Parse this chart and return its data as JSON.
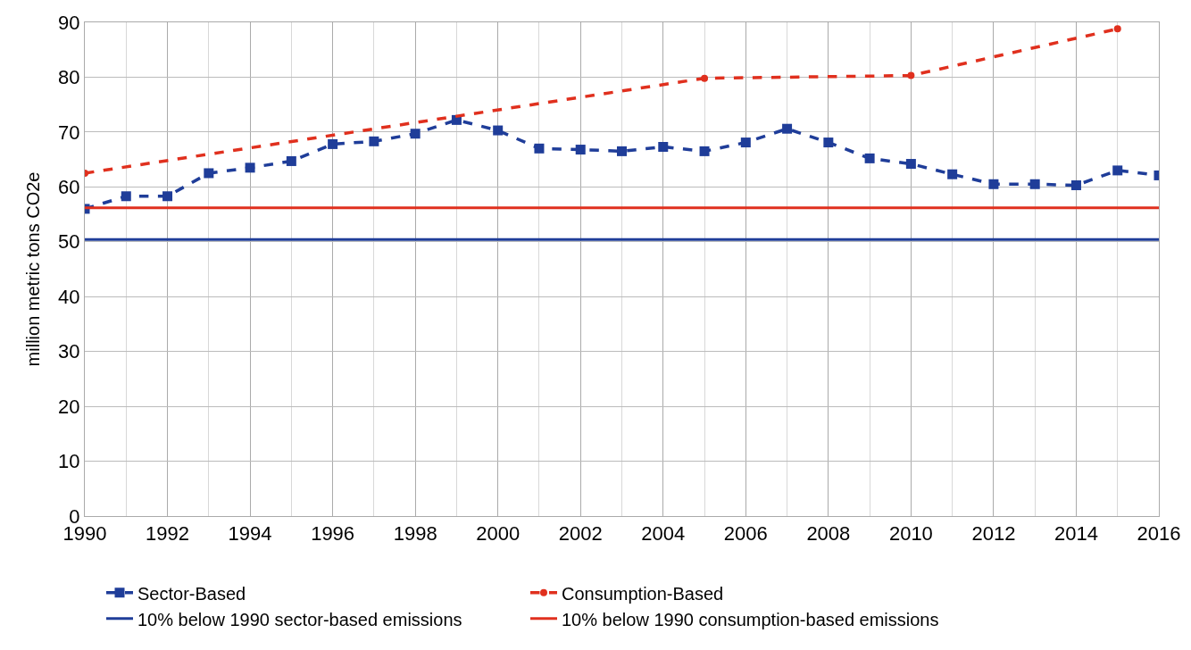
{
  "chart_data": {
    "type": "line",
    "ylabel": "million metric tons CO2e",
    "xlim": [
      1990,
      2016
    ],
    "xticks": [
      1990,
      1992,
      1994,
      1996,
      1998,
      2000,
      2002,
      2004,
      2006,
      2008,
      2010,
      2012,
      2014,
      2016
    ],
    "ylim": [
      0,
      90
    ],
    "yticks": [
      0,
      10,
      20,
      30,
      40,
      50,
      60,
      70,
      80,
      90
    ],
    "grid": true,
    "legend": "bottom",
    "line_style": "dashed",
    "series": [
      {
        "name": "Sector-Based",
        "color": "#1f3d99",
        "marker": "square",
        "x": [
          1990,
          1991,
          1992,
          1993,
          1994,
          1995,
          1996,
          1997,
          1998,
          1999,
          2000,
          2001,
          2002,
          2003,
          2004,
          2005,
          2006,
          2007,
          2008,
          2009,
          2010,
          2011,
          2012,
          2013,
          2014,
          2015,
          2016
        ],
        "values": [
          56,
          58.3,
          58.3,
          62.5,
          63.5,
          64.7,
          67.8,
          68.3,
          69.7,
          72.2,
          70.3,
          67,
          66.8,
          66.5,
          67.3,
          66.5,
          68.1,
          70.6,
          68.1,
          65.2,
          64.2,
          62.3,
          60.5,
          60.5,
          60.3,
          63,
          62.1
        ]
      },
      {
        "name": "Consumption-Based",
        "color": "#e0301e",
        "marker": "circle",
        "x": [
          1990,
          2005,
          2010,
          2015
        ],
        "values": [
          62.5,
          79.8,
          80.3,
          88.8
        ]
      }
    ],
    "ref_lines": [
      {
        "axis": "y",
        "value": 50.4,
        "label": "10% below 1990 sector-based emissions",
        "color": "#1f3d99",
        "line_style": "solid"
      },
      {
        "axis": "y",
        "value": 56.2,
        "label": "10% below 1990 consumption-based emissions",
        "color": "#e0301e",
        "line_style": "solid"
      }
    ]
  }
}
